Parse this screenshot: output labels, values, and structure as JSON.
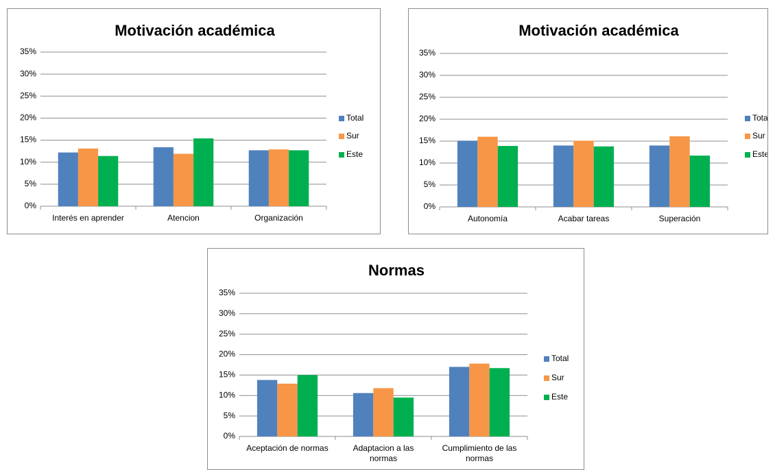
{
  "chart_data": [
    {
      "type": "bar",
      "title": "Motivación académica",
      "categories": [
        "Interés en aprender",
        "Atencion",
        "Organización"
      ],
      "series": [
        {
          "name": "Total",
          "color": "#4f81bd",
          "values": [
            12.2,
            13.4,
            12.7
          ]
        },
        {
          "name": "Sur",
          "color": "#f79646",
          "values": [
            13.1,
            11.9,
            12.9
          ]
        },
        {
          "name": "Este",
          "color": "#00b050",
          "values": [
            11.4,
            15.4,
            12.7
          ]
        }
      ],
      "ylim": [
        0,
        35
      ],
      "yticks": [
        {
          "value": 0,
          "label": "0%"
        },
        {
          "value": 5,
          "label": "5%"
        },
        {
          "value": 10,
          "label": "10%"
        },
        {
          "value": 15,
          "label": "15%"
        },
        {
          "value": 20,
          "label": "20%"
        },
        {
          "value": 25,
          "label": "25%"
        },
        {
          "value": 30,
          "label": "30%"
        },
        {
          "value": 35,
          "label": "35%"
        }
      ],
      "grid": true,
      "legend": "right"
    },
    {
      "type": "bar",
      "title": "Motivación académica",
      "categories": [
        "Autonomía",
        "Acabar tareas",
        "Superación"
      ],
      "series": [
        {
          "name": "Total",
          "color": "#4f81bd",
          "values": [
            15.1,
            14.0,
            14.0
          ]
        },
        {
          "name": "Sur",
          "color": "#f79646",
          "values": [
            16.0,
            15.1,
            16.1
          ]
        },
        {
          "name": "Este",
          "color": "#00b050",
          "values": [
            13.9,
            13.8,
            11.7
          ]
        }
      ],
      "ylim": [
        0,
        35
      ],
      "yticks": [
        {
          "value": 0,
          "label": "0%"
        },
        {
          "value": 5,
          "label": "5%"
        },
        {
          "value": 10,
          "label": "10%"
        },
        {
          "value": 15,
          "label": "15%"
        },
        {
          "value": 20,
          "label": "20%"
        },
        {
          "value": 25,
          "label": "25%"
        },
        {
          "value": 30,
          "label": "30%"
        },
        {
          "value": 35,
          "label": "35%"
        }
      ],
      "grid": true,
      "legend": "right"
    },
    {
      "type": "bar",
      "title": "Normas",
      "categories": [
        "Aceptación de normas",
        "Adaptacion a las normas",
        "Cumplimiento de las normas"
      ],
      "series": [
        {
          "name": "Total",
          "color": "#4f81bd",
          "values": [
            13.8,
            10.6,
            17.0
          ]
        },
        {
          "name": "Sur",
          "color": "#f79646",
          "values": [
            12.9,
            11.8,
            17.8
          ]
        },
        {
          "name": "Este",
          "color": "#00b050",
          "values": [
            15.0,
            9.5,
            16.7
          ]
        }
      ],
      "ylim": [
        0,
        35
      ],
      "yticks": [
        {
          "value": 0,
          "label": "0%"
        },
        {
          "value": 5,
          "label": "5%"
        },
        {
          "value": 10,
          "label": "10%"
        },
        {
          "value": 15,
          "label": "15%"
        },
        {
          "value": 20,
          "label": "20%"
        },
        {
          "value": 25,
          "label": "25%"
        },
        {
          "value": 30,
          "label": "30%"
        },
        {
          "value": 35,
          "label": "35%"
        }
      ],
      "grid": true,
      "legend": "right"
    }
  ]
}
